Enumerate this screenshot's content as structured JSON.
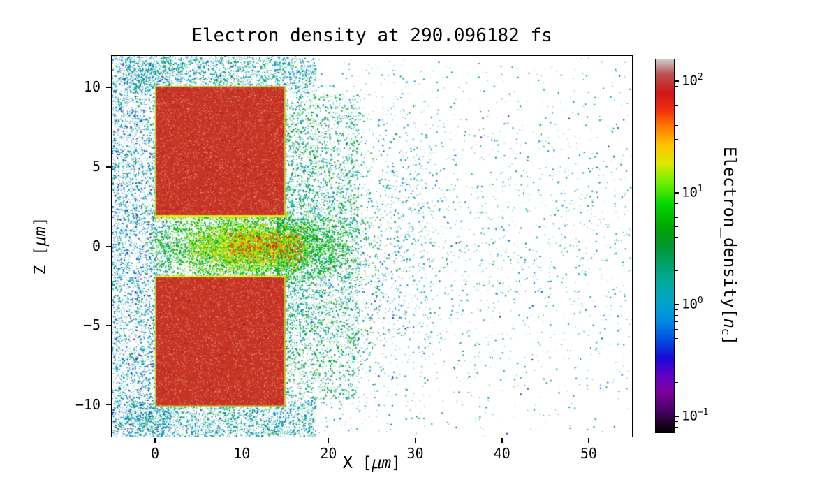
{
  "chart_data": {
    "type": "heatmap",
    "title": "Electron_density at 290.096182 fs",
    "time_fs": 290.096182,
    "xlabel": {
      "prefix": "X [",
      "unit": "μm",
      "suffix": "]"
    },
    "ylabel": {
      "prefix": "Z [",
      "unit": "μm",
      "suffix": "]"
    },
    "xlim": [
      -5,
      55
    ],
    "ylim": [
      -12,
      12
    ],
    "xticks": [
      0,
      10,
      20,
      30,
      40,
      50
    ],
    "xtick_labels": [
      "0",
      "10",
      "20",
      "30",
      "40",
      "50"
    ],
    "yticks": [
      10,
      5,
      0,
      -5,
      -10
    ],
    "ytick_labels": [
      "10",
      "5",
      "0",
      "−5",
      "−10"
    ],
    "grid": false,
    "colorbar": {
      "label_prefix": "Electron_density[",
      "label_var": "n",
      "label_sub": "c",
      "label_suffix": "]",
      "scale": "log",
      "log_range": [
        -1.15,
        2.2
      ],
      "major_ticks": [
        {
          "base": "10",
          "exp": "2",
          "log": 2
        },
        {
          "base": "10",
          "exp": "1",
          "log": 1
        },
        {
          "base": "10",
          "exp": "0",
          "log": 0
        },
        {
          "base": "10",
          "exp": "−1",
          "log": -1
        }
      ],
      "colormap": "nipy_spectral",
      "colormap_stops": [
        [
          0.0,
          0,
          0,
          0
        ],
        [
          0.055,
          70,
          0,
          95
        ],
        [
          0.11,
          125,
          0,
          160
        ],
        [
          0.16,
          90,
          0,
          205
        ],
        [
          0.2,
          20,
          10,
          215
        ],
        [
          0.25,
          0,
          80,
          225
        ],
        [
          0.3,
          0,
          140,
          225
        ],
        [
          0.35,
          0,
          165,
          200
        ],
        [
          0.4,
          0,
          170,
          160
        ],
        [
          0.45,
          0,
          162,
          105
        ],
        [
          0.5,
          0,
          152,
          45
        ],
        [
          0.55,
          0,
          165,
          0
        ],
        [
          0.61,
          0,
          215,
          0
        ],
        [
          0.67,
          110,
          240,
          0
        ],
        [
          0.72,
          220,
          232,
          0
        ],
        [
          0.77,
          255,
          196,
          0
        ],
        [
          0.82,
          255,
          120,
          0
        ],
        [
          0.865,
          240,
          45,
          15
        ],
        [
          0.91,
          208,
          22,
          22
        ],
        [
          0.96,
          185,
          80,
          80
        ],
        [
          1.0,
          205,
          205,
          205
        ]
      ]
    },
    "features": {
      "targets": [
        {
          "x_range": [
            0,
            15
          ],
          "z_range": [
            1.9,
            10.1
          ],
          "density_nc": 100
        },
        {
          "x_range": [
            0,
            15
          ],
          "z_range": [
            -10.1,
            -1.9
          ],
          "density_nc": 100
        }
      ],
      "channel_jet": {
        "x_range": [
          -1,
          23
        ],
        "z_range": [
          -2.1,
          2.1
        ],
        "density_nc": "3–30, hottest ~50 near x≈12, z≈0"
      },
      "halo": "diffuse scattered electrons 0.1–2 n_c surrounding targets and streaming out to x≈55"
    }
  }
}
